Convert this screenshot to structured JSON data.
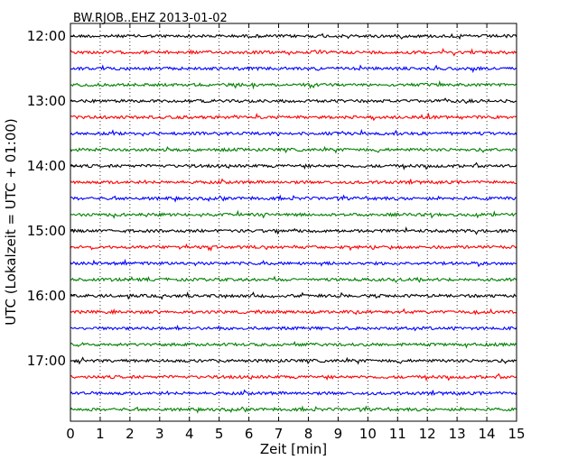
{
  "chart_data": {
    "type": "line",
    "title": "BW.RJOB..EHZ 2013-01-02",
    "xlabel": "Zeit  [min]",
    "ylabel": "UTC (Lokalzeit = UTC + 01:00)",
    "xlim": [
      0,
      15
    ],
    "x_ticks": [
      "0",
      "1",
      "2",
      "3",
      "4",
      "5",
      "6",
      "7",
      "8",
      "9",
      "10",
      "11",
      "12",
      "13",
      "14",
      "15"
    ],
    "y_tick_labels": [
      "12:00",
      "13:00",
      "14:00",
      "15:00",
      "16:00",
      "17:00"
    ],
    "grid": "vertical dotted lines at each minute",
    "series_colors": [
      "#000000",
      "#ff0000",
      "#0000ff",
      "#008000"
    ],
    "trace_start_times": [
      "12:00",
      "12:15",
      "12:30",
      "12:45",
      "13:00",
      "13:15",
      "13:30",
      "13:45",
      "14:00",
      "14:15",
      "14:30",
      "14:45",
      "15:00",
      "15:15",
      "15:30",
      "15:45",
      "16:00",
      "16:15",
      "16:30",
      "16:45",
      "17:00",
      "17:15",
      "17:30",
      "17:45"
    ],
    "trace_duration_min": 15
  }
}
